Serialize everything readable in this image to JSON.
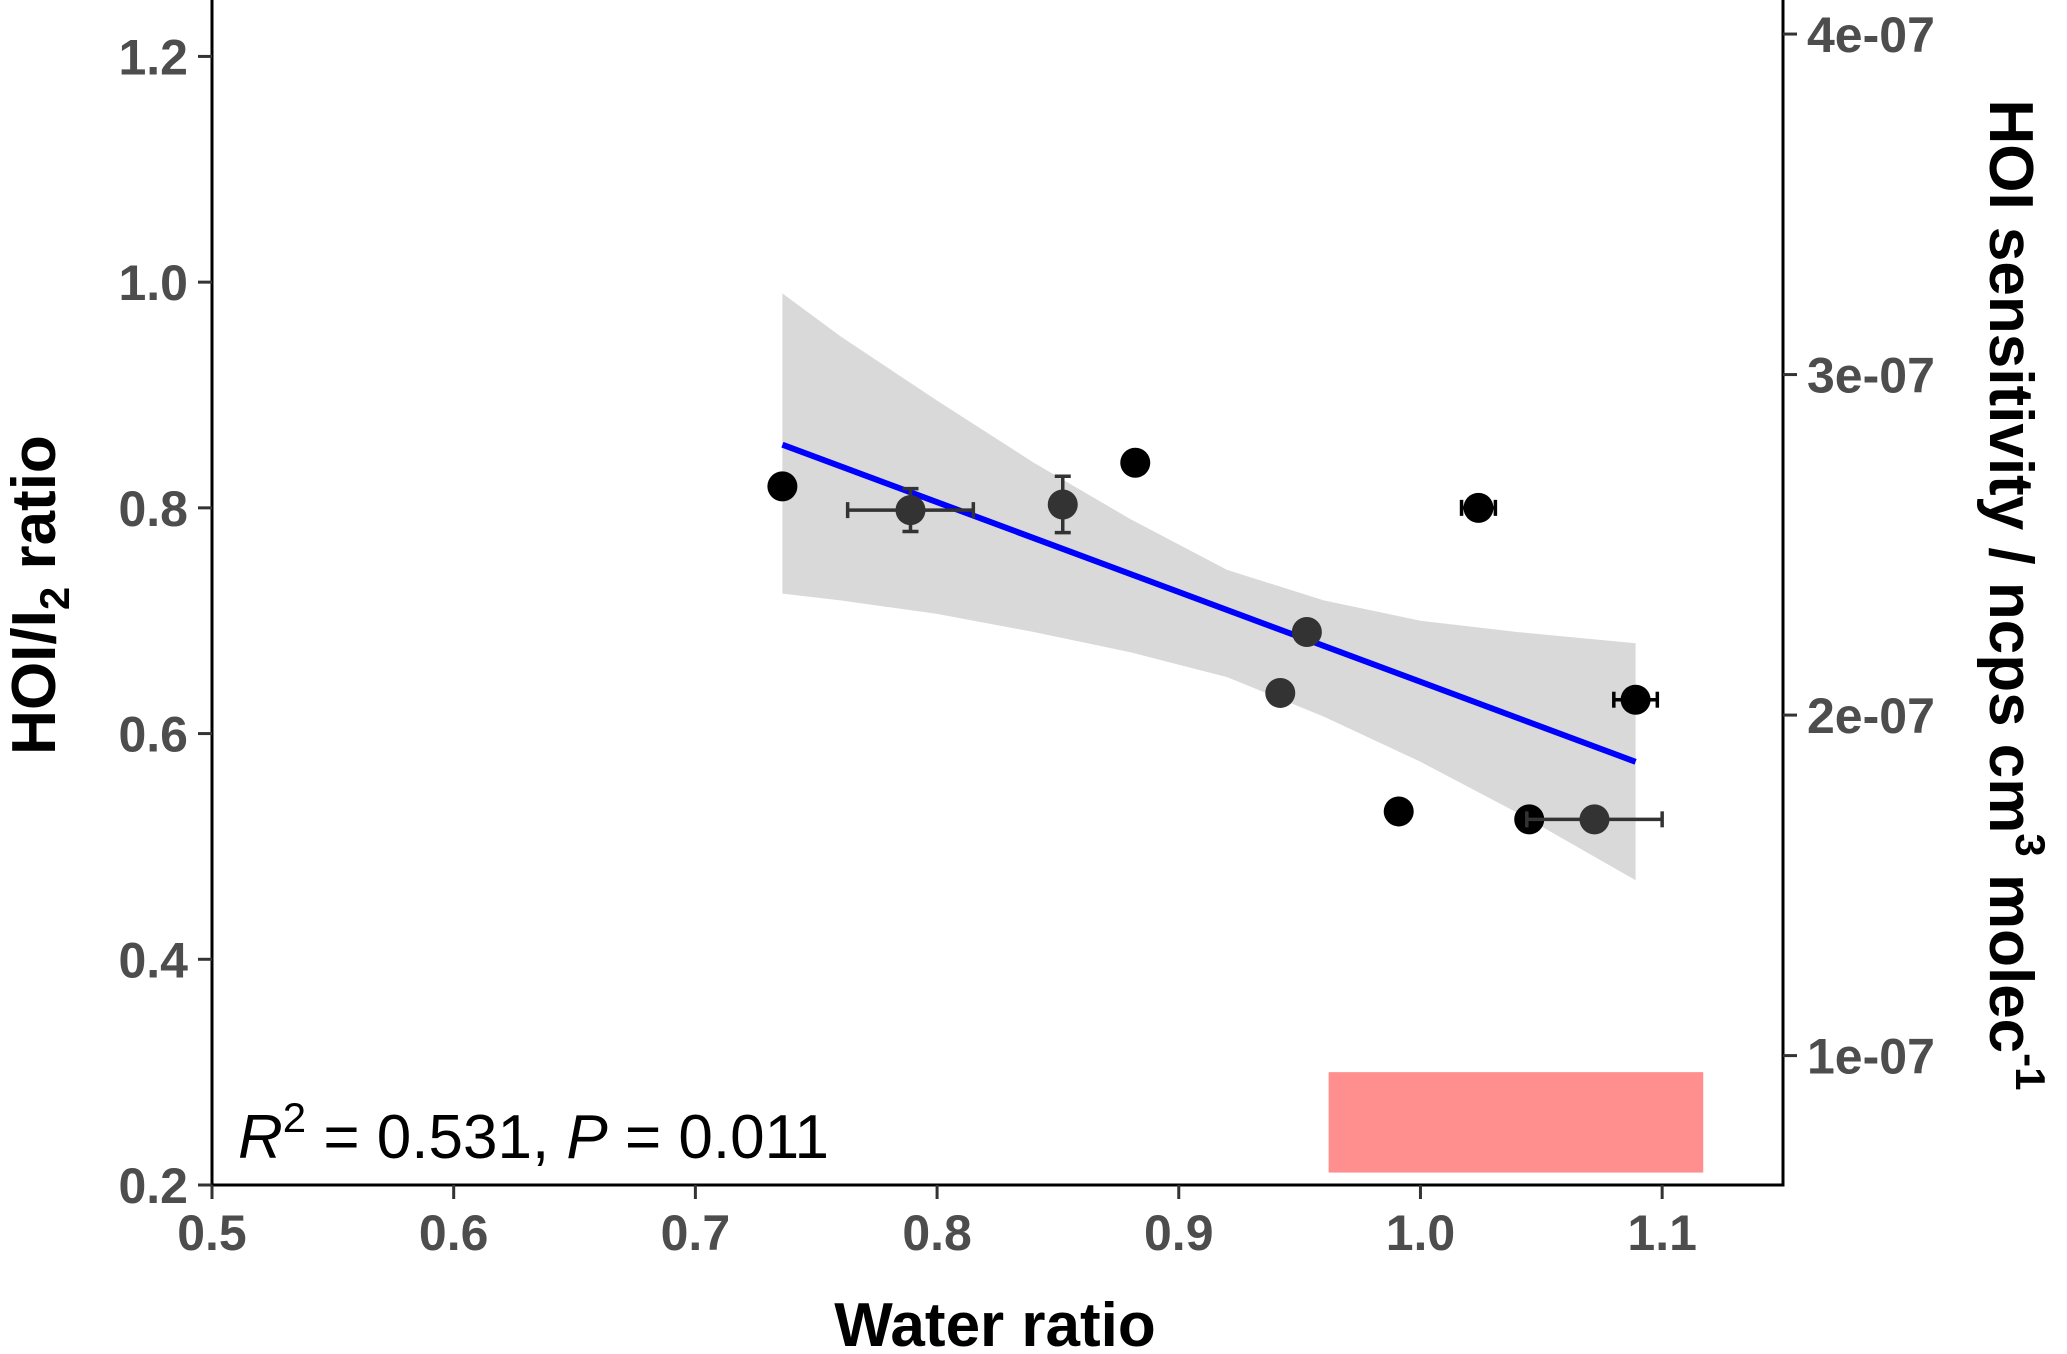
{
  "chart_data": {
    "type": "scatter",
    "title": "",
    "xlabel": "Water ratio",
    "ylabel": {
      "main": "HOI/I",
      "sub": "2",
      "rest": " ratio"
    },
    "y2label": {
      "main": "HOI sensitivity / ncps cm",
      "sup": "3",
      "rest": " molec",
      "sup2": "-1"
    },
    "xlim": [
      0.5,
      1.15
    ],
    "ylim": [
      0.2,
      1.25
    ],
    "y2lim": [
      6.2e-08,
      4.1e-07
    ],
    "x_ticks": [
      {
        "value": 0.5,
        "label": "0.5"
      },
      {
        "value": 0.6,
        "label": "0.6"
      },
      {
        "value": 0.7,
        "label": "0.7"
      },
      {
        "value": 0.8,
        "label": "0.8"
      },
      {
        "value": 0.9,
        "label": "0.9"
      },
      {
        "value": 1.0,
        "label": "1.0"
      },
      {
        "value": 1.1,
        "label": "1.1"
      }
    ],
    "y_ticks": [
      {
        "value": 0.2,
        "label": "0.2"
      },
      {
        "value": 0.4,
        "label": "0.4"
      },
      {
        "value": 0.6,
        "label": "0.6"
      },
      {
        "value": 0.8,
        "label": "0.8"
      },
      {
        "value": 1.0,
        "label": "1.0"
      },
      {
        "value": 1.2,
        "label": "1.2"
      }
    ],
    "y2_ticks": [
      {
        "value": 1e-07,
        "label": "1e-07"
      },
      {
        "value": 2e-07,
        "label": "2e-07"
      },
      {
        "value": 3e-07,
        "label": "3e-07"
      },
      {
        "value": 4e-07,
        "label": "4e-07"
      }
    ],
    "grid": false,
    "series": [
      {
        "marker_color": "#000000",
        "points": [
          {
            "x": 0.736,
            "y": 0.819
          },
          {
            "x": 0.882,
            "y": 0.84
          },
          {
            "x": 0.991,
            "y": 0.531
          },
          {
            "x": 1.024,
            "y": 0.8,
            "x_err": 0.007
          },
          {
            "x": 1.045,
            "y": 0.524
          },
          {
            "x": 1.089,
            "y": 0.63,
            "x_err": 0.009
          }
        ]
      },
      {
        "marker_color": "#333333",
        "points": [
          {
            "x": 0.789,
            "y": 0.798,
            "x_err": 0.026,
            "y_err": 0.019
          },
          {
            "x": 0.852,
            "y": 0.803,
            "y_err": 0.025
          },
          {
            "x": 0.942,
            "y": 0.636
          },
          {
            "x": 0.953,
            "y": 0.69
          },
          {
            "x": 1.072,
            "y": 0.524,
            "x_err": 0.028
          }
        ]
      }
    ],
    "fit": {
      "color": "#0000ff",
      "line": [
        {
          "x": 0.736,
          "y": 0.856
        },
        {
          "x": 1.089,
          "y": 0.575
        }
      ],
      "ci_color": "#d9d9d9",
      "ci_upper": [
        {
          "x": 0.736,
          "y": 0.99
        },
        {
          "x": 0.76,
          "y": 0.952
        },
        {
          "x": 0.8,
          "y": 0.895
        },
        {
          "x": 0.84,
          "y": 0.84
        },
        {
          "x": 0.88,
          "y": 0.79
        },
        {
          "x": 0.92,
          "y": 0.745
        },
        {
          "x": 0.96,
          "y": 0.718
        },
        {
          "x": 1.0,
          "y": 0.7
        },
        {
          "x": 1.04,
          "y": 0.69
        },
        {
          "x": 1.089,
          "y": 0.68
        }
      ],
      "ci_lower": [
        {
          "x": 1.089,
          "y": 0.47
        },
        {
          "x": 1.04,
          "y": 0.53
        },
        {
          "x": 1.0,
          "y": 0.575
        },
        {
          "x": 0.96,
          "y": 0.615
        },
        {
          "x": 0.92,
          "y": 0.65
        },
        {
          "x": 0.88,
          "y": 0.672
        },
        {
          "x": 0.84,
          "y": 0.69
        },
        {
          "x": 0.8,
          "y": 0.706
        },
        {
          "x": 0.76,
          "y": 0.718
        },
        {
          "x": 0.736,
          "y": 0.724
        }
      ]
    },
    "annotation": {
      "r_symbol": "R",
      "r_sup": "2",
      "r_text": " = 0.531, ",
      "p_symbol": "P",
      "p_text": " = 0.011"
    },
    "highlight_box": {
      "color": "#ff8f8f",
      "x_range": [
        0.962,
        1.117
      ],
      "y_range": [
        0.211,
        0.3
      ]
    }
  }
}
